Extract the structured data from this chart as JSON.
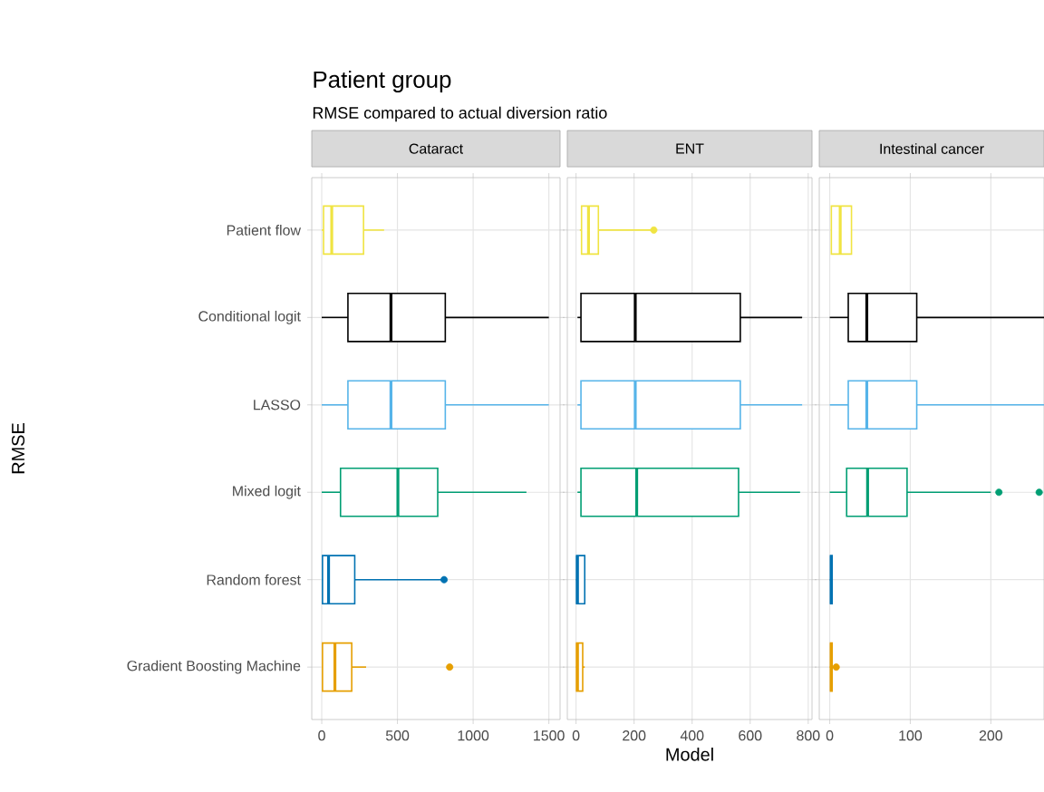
{
  "chart_data": [
    {
      "type": "box",
      "orientation": "horizontal",
      "title": "Cataract",
      "ylabel": "RMSE",
      "annotations": [
        "Patient group",
        "RMSE compared to actual diversion ratio"
      ],
      "categories": [
        "Patient flow",
        "Conditional logit",
        "LASSO",
        "Mixed logit",
        "Random forest",
        "Gradient Boosting Machine"
      ],
      "colors": [
        "#f0e442",
        "#000000",
        "#56b4e9",
        "#009e73",
        "#0072b2",
        "#e69f00"
      ],
      "boxes": [
        {
          "low": 0,
          "q1": 12,
          "median": 66,
          "q3": 276,
          "high": 412
        },
        {
          "low": 0,
          "q1": 173,
          "median": 457,
          "q3": 816,
          "high": 1500
        },
        {
          "low": 0,
          "q1": 173,
          "median": 457,
          "q3": 816,
          "high": 1500
        },
        {
          "low": 0,
          "q1": 124,
          "median": 503,
          "q3": 766,
          "high": 1352
        },
        {
          "low": 0,
          "q1": 5,
          "median": 45,
          "q3": 218,
          "high": 800,
          "outliers": [
            808
          ]
        },
        {
          "low": 0,
          "q1": 5,
          "median": 87,
          "q3": 198,
          "high": 293,
          "outliers": [
            845
          ]
        }
      ],
      "xlim": [
        -66,
        1574
      ],
      "xticks": [
        0,
        500,
        1000,
        1500
      ],
      "grid": true
    },
    {
      "type": "box",
      "orientation": "horizontal",
      "title": "ENT",
      "xlabel": "Model",
      "tick_labels": "x",
      "categories": [
        null,
        null,
        null,
        null,
        null,
        null
      ],
      "colors": [
        "#f0e442",
        "#000000",
        "#56b4e9",
        "#009e73",
        "#0072b2",
        "#e69f00"
      ],
      "boxes": [
        {
          "low": 13,
          "q1": 19,
          "median": 43,
          "q3": 77,
          "high": 260,
          "outliers": [
            268
          ]
        },
        {
          "low": 5,
          "q1": 17,
          "median": 204,
          "q3": 566,
          "high": 779
        },
        {
          "low": 5,
          "q1": 17,
          "median": 204,
          "q3": 566,
          "high": 779
        },
        {
          "low": 5,
          "q1": 17,
          "median": 209,
          "q3": 560,
          "high": 772
        },
        {
          "low": 0,
          "q1": 2,
          "median": 5,
          "q3": 30,
          "high": 30
        },
        {
          "low": 0,
          "q1": 2,
          "median": 5,
          "q3": 23,
          "high": 30
        }
      ],
      "xlim": [
        -30,
        813
      ],
      "xticks": [
        0,
        200,
        400,
        600,
        800
      ],
      "grid": true
    },
    {
      "type": "box",
      "orientation": "horizontal",
      "title": "Intestinal cancer",
      "tick_labels": "x",
      "categories": [
        null,
        null,
        null,
        null,
        null,
        null
      ],
      "colors": [
        "#f0e442",
        "#000000",
        "#56b4e9",
        "#009e73",
        "#0072b2",
        "#e69f00"
      ],
      "boxes": [
        {
          "low": 2,
          "q1": 2,
          "median": 13,
          "q3": 27,
          "high": 27
        },
        {
          "low": 0,
          "q1": 23,
          "median": 46,
          "q3": 108,
          "high": 266
        },
        {
          "low": 0,
          "q1": 23,
          "median": 46,
          "q3": 108,
          "high": 266
        },
        {
          "low": 0,
          "q1": 21,
          "median": 47,
          "q3": 96,
          "high": 200,
          "outliers": [
            210,
            260
          ]
        },
        {
          "low": 0,
          "q1": 1,
          "median": 2,
          "q3": 3,
          "high": 3
        },
        {
          "low": 0,
          "q1": 1,
          "median": 2,
          "q3": 3,
          "high": 5,
          "outliers": [
            8
          ]
        }
      ],
      "xlim": [
        -13,
        266
      ],
      "xticks": [
        0,
        100,
        200
      ],
      "grid": true
    }
  ]
}
